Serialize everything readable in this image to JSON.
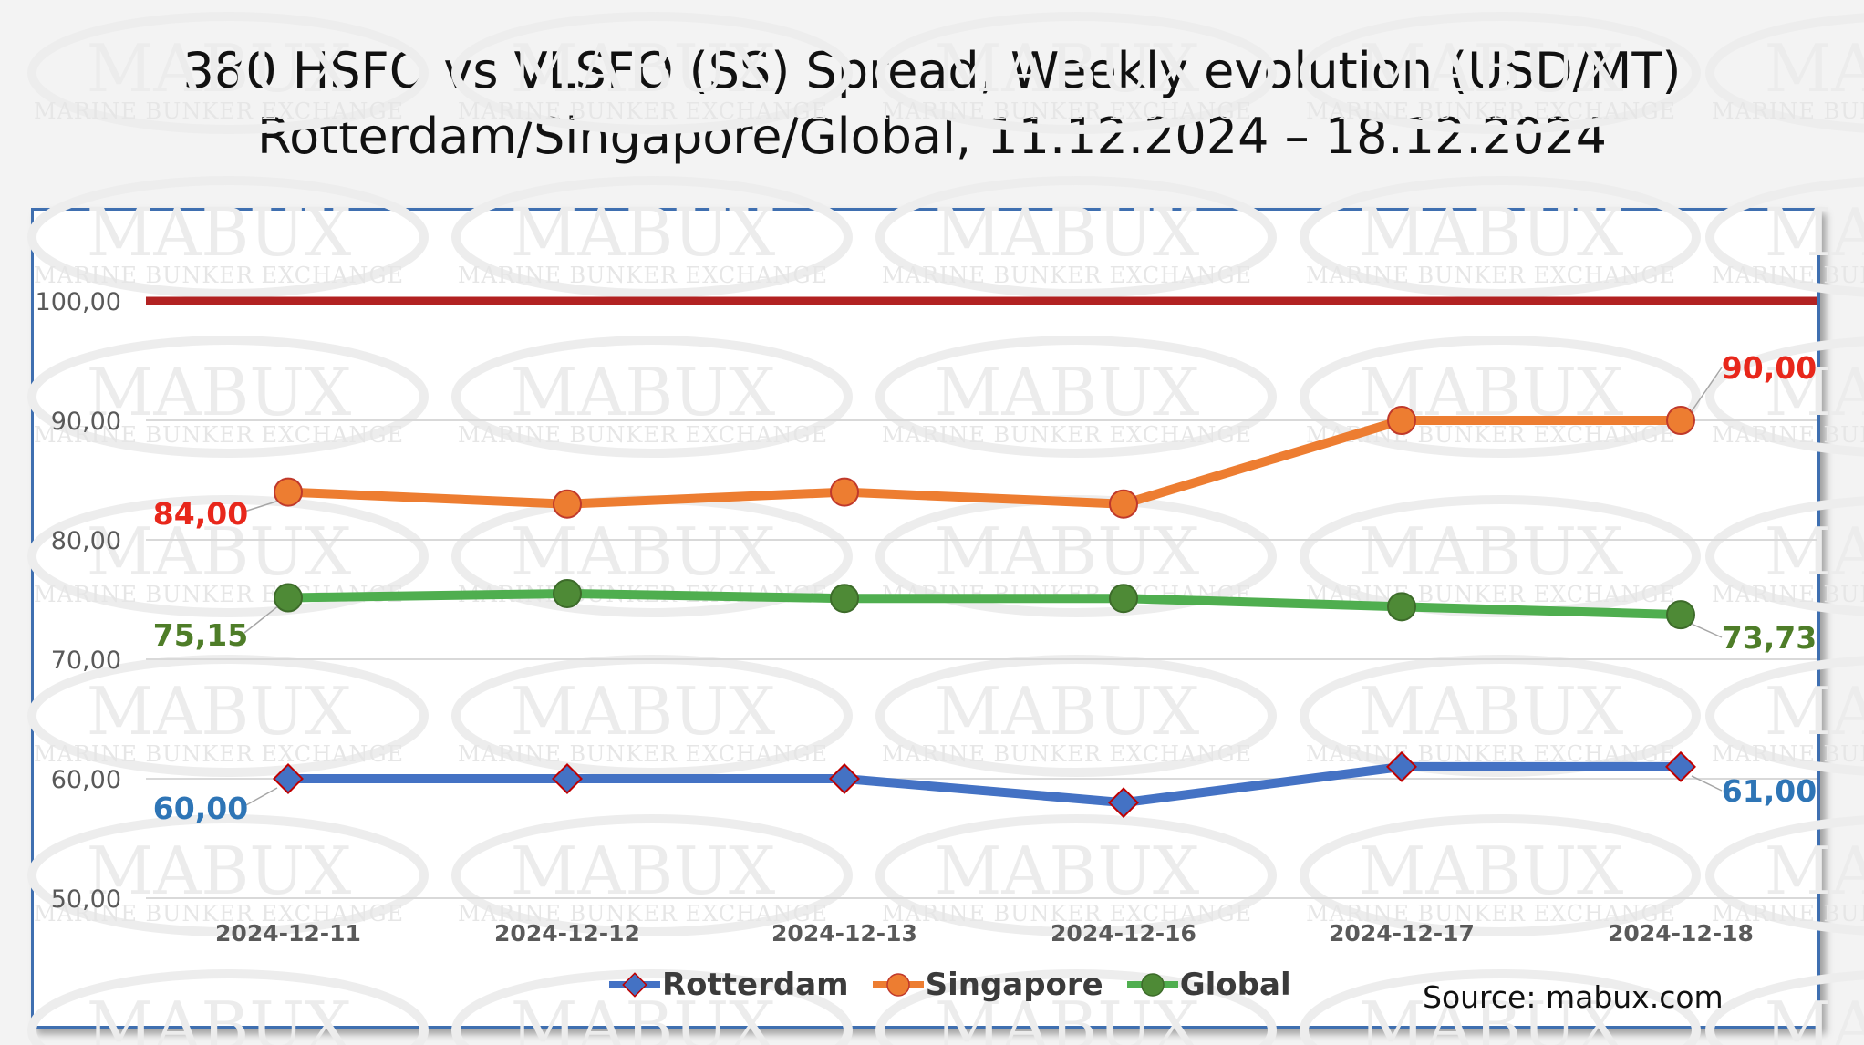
{
  "title": {
    "line1": "380 HSFO vs VLSFO (SS) Spread, Weekly evolution (USD/MT)",
    "line2": "Rotterdam/Singapore/Global, 11.12.2024 – 18.12.2024"
  },
  "source": "Source: mabux.com",
  "watermark": {
    "brand": "MABUX",
    "subtitle": "MARINE BUNKER EXCHANGE"
  },
  "colors": {
    "rotterdam": "#4472c4",
    "singapore": "#ed7d31",
    "global": "#4fae4f",
    "reference_line": "#b22222",
    "label_singapore": "#e8271b",
    "label_global": "#4e7d28",
    "label_rotterdam": "#2e75b6"
  },
  "chart_data": {
    "type": "line",
    "title": "380 HSFO vs VLSFO (SS) Spread, Weekly evolution (USD/MT)",
    "xlabel": "",
    "ylabel": "",
    "ylim": [
      50,
      100
    ],
    "yticks": [
      "100,00",
      "90,00",
      "80,00",
      "70,00",
      "60,00",
      "50,00"
    ],
    "ytick_values": [
      100,
      90,
      80,
      70,
      60,
      50
    ],
    "grid": true,
    "legend": "bottom",
    "categories": [
      "2024-12-11",
      "2024-12-12",
      "2024-12-13",
      "2024-12-16",
      "2024-12-17",
      "2024-12-18"
    ],
    "reference_line": 100,
    "series": [
      {
        "name": "Rotterdam",
        "marker": "diamond",
        "values": [
          60,
          60,
          60,
          58,
          61,
          61
        ],
        "first_label": "60,00",
        "last_label": "61,00"
      },
      {
        "name": "Singapore",
        "marker": "circle",
        "values": [
          84,
          83,
          84,
          83,
          90,
          90
        ],
        "first_label": "84,00",
        "last_label": "90,00"
      },
      {
        "name": "Global",
        "marker": "circle",
        "values": [
          75.15,
          75.5,
          75.1,
          75.1,
          74.4,
          73.73
        ],
        "first_label": "75,15",
        "last_label": "73,73"
      }
    ]
  }
}
